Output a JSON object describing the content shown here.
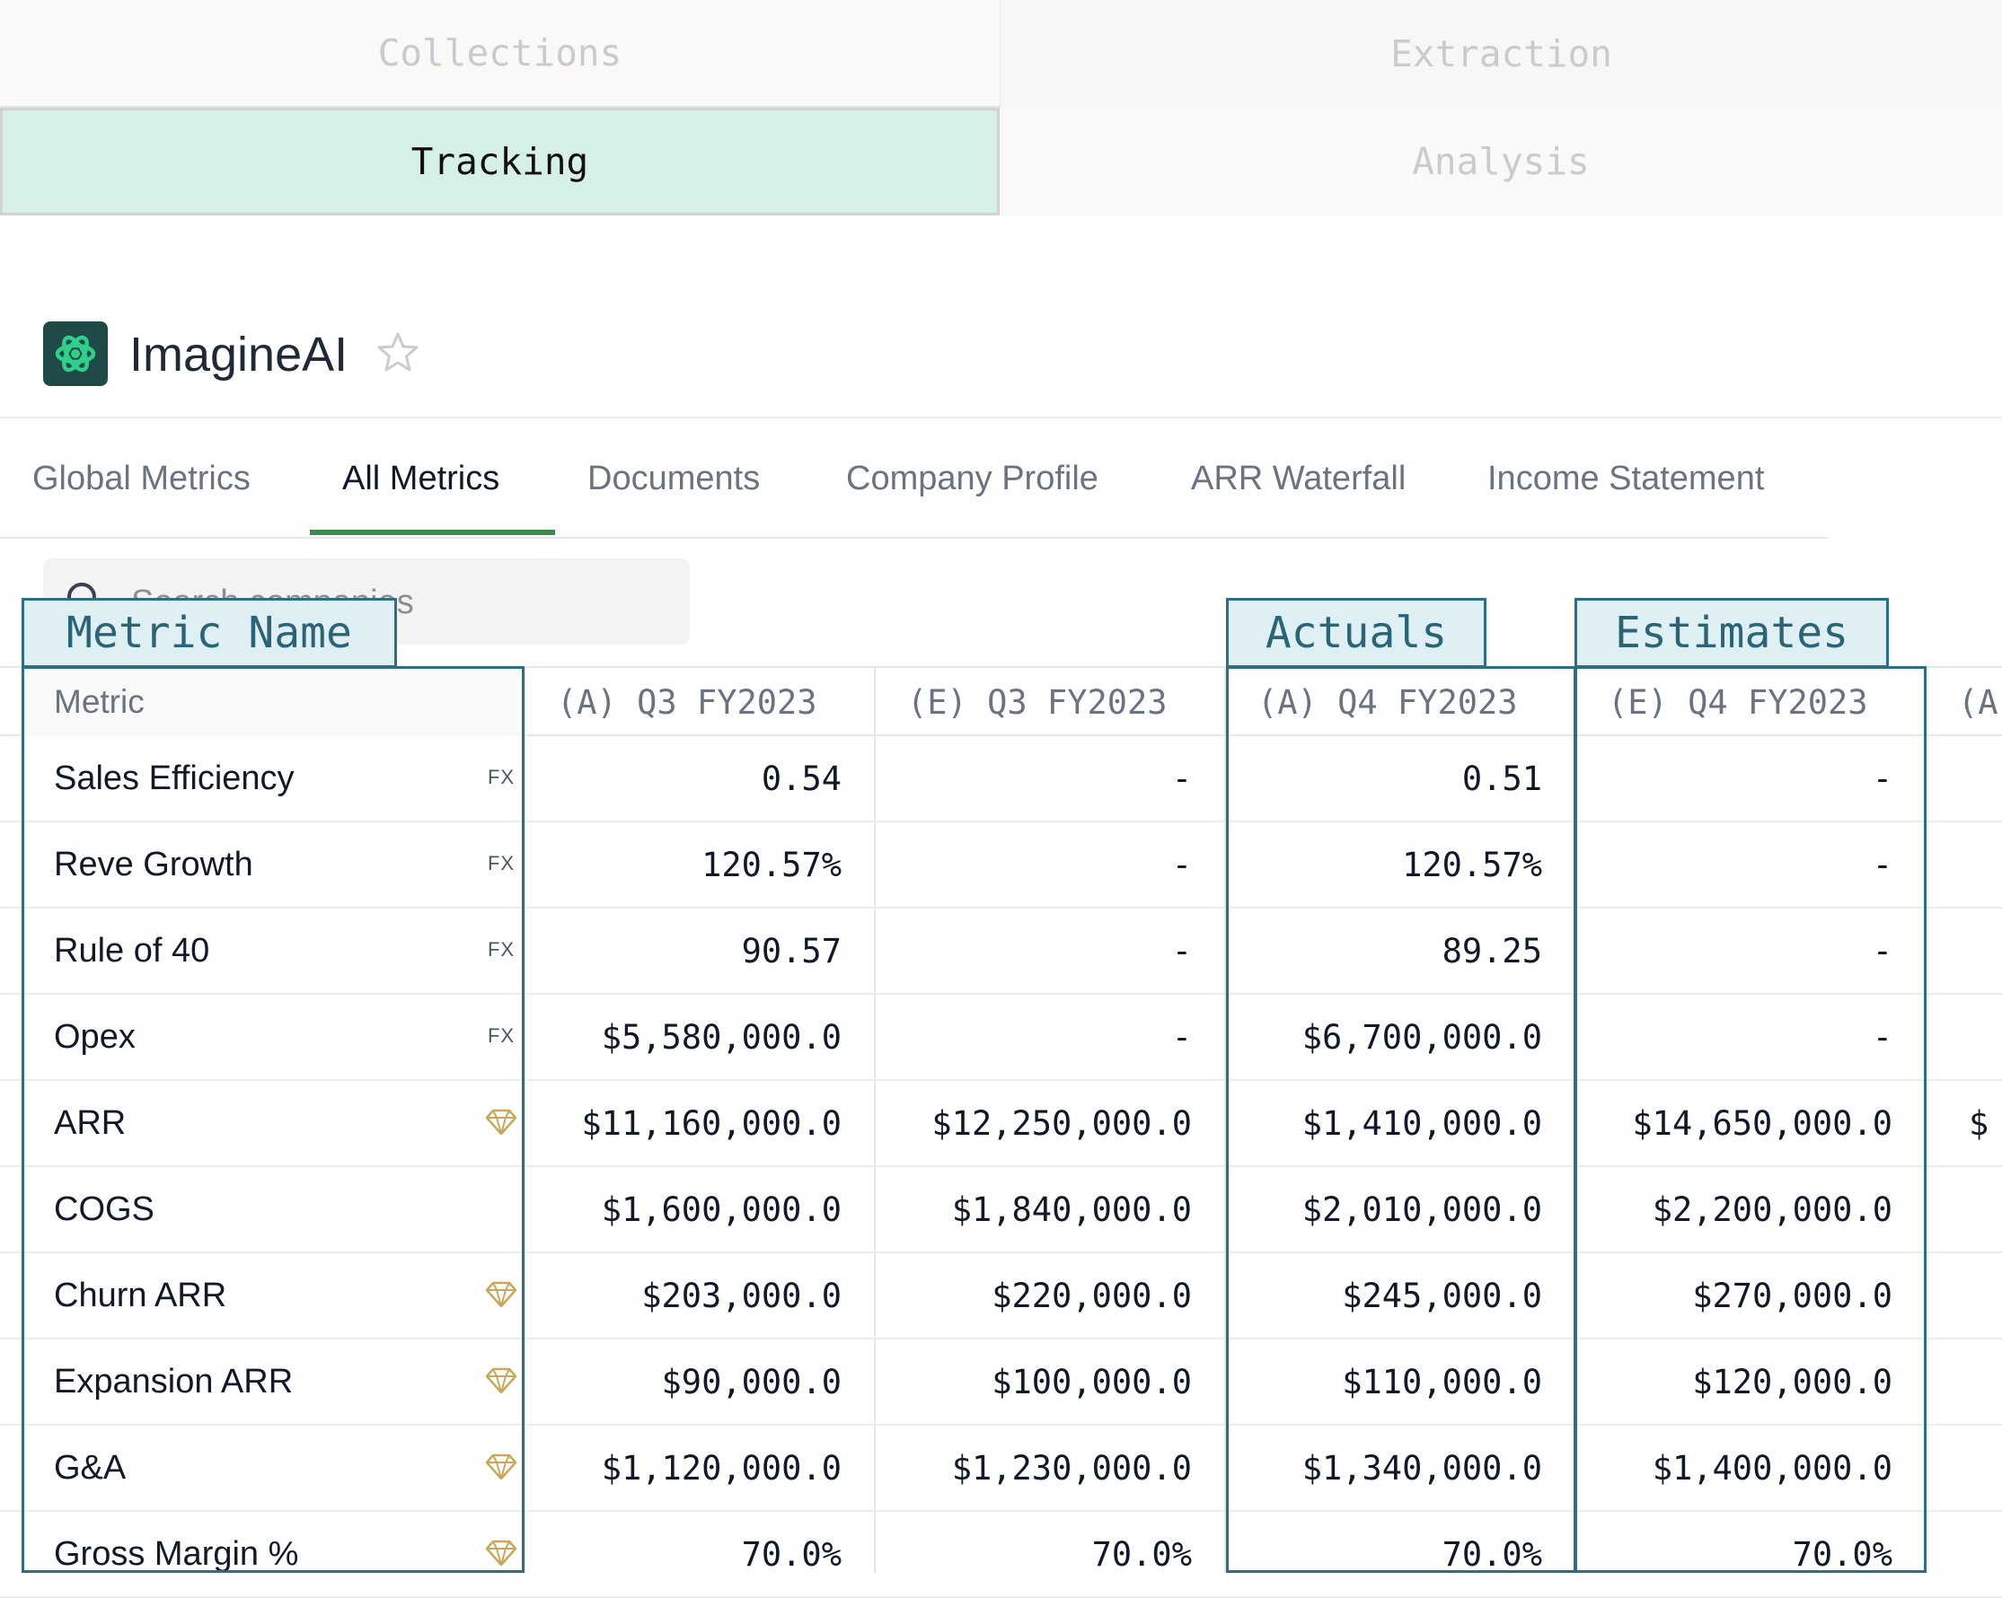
{
  "top_tabs": {
    "collections": "Collections",
    "extraction": "Extraction",
    "tracking": "Tracking",
    "analysis": "Analysis"
  },
  "company": {
    "name": "ImagineAI"
  },
  "sub_tabs": [
    "Global Metrics",
    "All Metrics",
    "Documents",
    "Company Profile",
    "ARR Waterfall",
    "Income Statement"
  ],
  "search": {
    "placeholder": "Search companies"
  },
  "highlight_labels": {
    "metric_name": "Metric Name",
    "actuals": "Actuals",
    "estimates": "Estimates"
  },
  "table": {
    "columns": [
      "Metric",
      "(A) Q3 FY2023",
      "(E) Q3 FY2023",
      "(A) Q4 FY2023",
      "(E) Q4 FY2023",
      "(A)"
    ],
    "rows": [
      {
        "name": "Sales Efficiency",
        "type": "fx",
        "values": [
          "0.54",
          "-",
          "0.51",
          "-"
        ]
      },
      {
        "name": "Reve Growth",
        "type": "fx",
        "values": [
          "120.57%",
          "-",
          "120.57%",
          "-"
        ]
      },
      {
        "name": "Rule of 40",
        "type": "fx",
        "values": [
          "90.57",
          "-",
          "89.25",
          "-"
        ]
      },
      {
        "name": "Opex",
        "type": "fx",
        "values": [
          "$5,580,000.0",
          "-",
          "$6,700,000.0",
          "-"
        ]
      },
      {
        "name": "ARR",
        "type": "gem",
        "values": [
          "$11,160,000.0",
          "$12,250,000.0",
          "$1,410,000.0",
          "$14,650,000.0"
        ]
      },
      {
        "name": "COGS",
        "type": "none",
        "values": [
          "$1,600,000.0",
          "$1,840,000.0",
          "$2,010,000.0",
          "$2,200,000.0"
        ]
      },
      {
        "name": "Churn ARR",
        "type": "gem",
        "values": [
          "$203,000.0",
          "$220,000.0",
          "$245,000.0",
          "$270,000.0"
        ]
      },
      {
        "name": "Expansion ARR",
        "type": "gem",
        "values": [
          "$90,000.0",
          "$100,000.0",
          "$110,000.0",
          "$120,000.0"
        ]
      },
      {
        "name": "G&A",
        "type": "gem",
        "values": [
          "$1,120,000.0",
          "$1,230,000.0",
          "$1,340,000.0",
          "$1,400,000.0"
        ]
      },
      {
        "name": "Gross Margin %",
        "type": "gem",
        "values": [
          "70.0%",
          "70.0%",
          "70.0%",
          "70.0%"
        ]
      }
    ],
    "fx_label": "FX",
    "partial_col_glyph": "$"
  },
  "colors": {
    "accent": "#3d8a4c",
    "highlight": "#2c6f82",
    "gem": "#c9a85a",
    "logo_bg": "#1f4a48",
    "logo_mark": "#2fd08a"
  },
  "icons": [
    "search-icon",
    "star-icon",
    "gem-icon",
    "logo-icon"
  ]
}
